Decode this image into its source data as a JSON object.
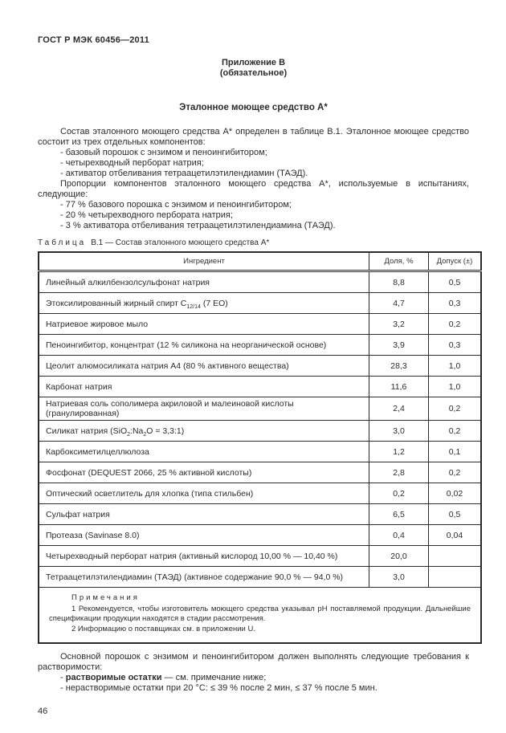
{
  "page": {
    "doc_code": "ГОСТ Р МЭК 60456—2011",
    "page_number": "46"
  },
  "appendix": {
    "label": "Приложение В",
    "kind": "(обязательное)",
    "heading": "Эталонное моющее средство А*"
  },
  "intro": {
    "para1": "Состав эталонного моющего средства А* определен в таблице В.1. Эталонное моющее средство состоит из трех отдельных компонентов:",
    "list1": [
      "- базовый порошок с энзимом и пеноингибитором;",
      "- четырехводный перборат натрия;",
      "- активатор отбеливания тетраацетилэтилендиамин (ТАЭД)."
    ],
    "para2": "Пропорции компонентов эталонного моющего средства А*, используемые в испытаниях, следующие:",
    "list2": [
      "- 77 % базового порошка с энзимом и пеноингибитором;",
      "- 20 % четырехводного пербората натрия;",
      "- 3 % активатора отбеливания тетраацетилэтилендиамина (ТАЭД)."
    ]
  },
  "table": {
    "caption_label": "Таблица",
    "caption_text": "В.1 — Состав эталонного моющего средства А*",
    "headers": {
      "ingredient": "Ингредиент",
      "share": "Доля, %",
      "tolerance": "Допуск (±)"
    },
    "rows": [
      {
        "name": "Линейный алкилбензолсульфонат натрия",
        "share": "8,8",
        "tolerance": "0,5"
      },
      {
        "name": "Этоксилированный жирный спирт C~12/14~ (7 ЕО)",
        "share": "4,7",
        "tolerance": "0,3"
      },
      {
        "name": "Натриевое жировое мыло",
        "share": "3,2",
        "tolerance": "0,2"
      },
      {
        "name": "Пеноингибитор, концентрат (12 % силикона на неорганической основе)",
        "share": "3,9",
        "tolerance": "0,3"
      },
      {
        "name": "Цеолит алюмосиликата натрия А4 (80 % активного вещества)",
        "share": "28,3",
        "tolerance": "1,0"
      },
      {
        "name": "Карбонат натрия",
        "share": "11,6",
        "tolerance": "1,0"
      },
      {
        "name": "Натриевая соль сополимера акриловой и малеиновой кислоты (гранулированная)",
        "share": "2,4",
        "tolerance": "0,2"
      },
      {
        "name": "Силикат натрия (SiO~2~:Na~2~O = 3,3:1)",
        "share": "3,0",
        "tolerance": "0,2"
      },
      {
        "name": "Карбоксиметилцеллюлоза",
        "share": "1,2",
        "tolerance": "0,1"
      },
      {
        "name": "Фосфонат (DEQUEST 2066, 25 % активной кислоты)",
        "share": "2,8",
        "tolerance": "0,2"
      },
      {
        "name": "Оптический осветлитель для хлопка (типа стильбен)",
        "share": "0,2",
        "tolerance": "0,02"
      },
      {
        "name": "Сульфат натрия",
        "share": "6,5",
        "tolerance": "0,5"
      },
      {
        "name": "Протеаза (Savinase 8.0)",
        "share": "0,4",
        "tolerance": "0,04"
      },
      {
        "name": "Четырехводный перборат натрия (активный кислород 10,00 % — 10,40 %)",
        "share": "20,0",
        "tolerance": ""
      },
      {
        "name": "Тетраацетилэтилендиамин (ТАЭД) (активное содержание 90,0 % — 94,0 %)",
        "share": "3,0",
        "tolerance": ""
      }
    ],
    "notes_title": "Примечания",
    "notes": [
      "1 Рекомендуется, чтобы изготовитель моющего средства указывал pH поставляемой продукции. Дальнейшие спецификации продукции находятся в стадии рассмотрения.",
      "2  Информацию о поставщиках см. в приложении U."
    ]
  },
  "footer": {
    "para": "Основной порошок с энзимом и пеноингибитором должен выполнять следующие требования к растворимости:",
    "list": [
      "- **растворимые остатки** — см. примечание ниже;",
      "- нерастворимые остатки при 20 °С: ≤ 39 % после 2 мин, ≤ 37 %  после 5 мин."
    ]
  }
}
